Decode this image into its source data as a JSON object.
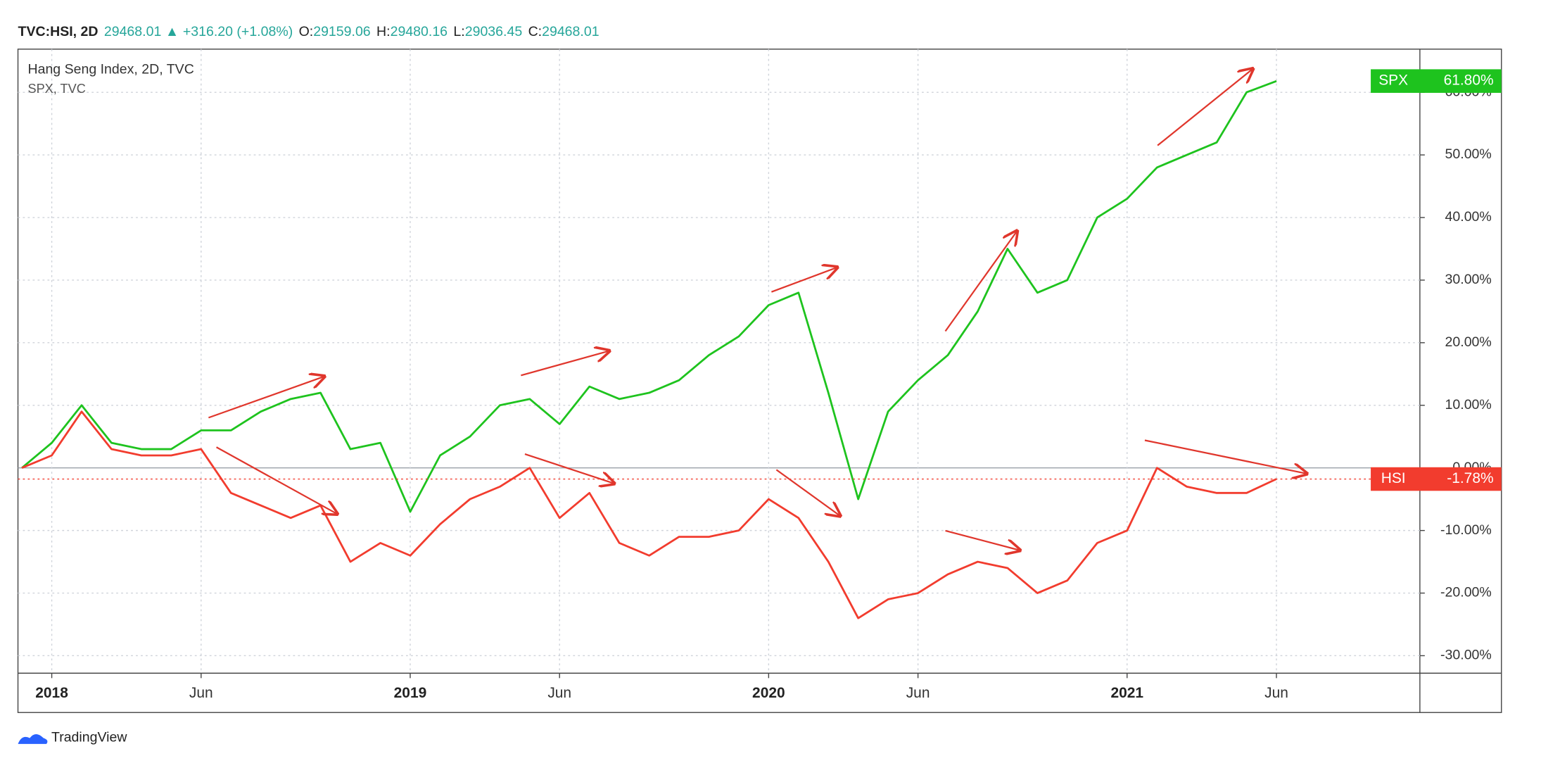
{
  "header": {
    "symbol": "TVC:HSI, 2D",
    "last": "29468.01",
    "change": "+316.20 (+1.08%)",
    "open_label": "O:",
    "open": "29159.06",
    "high_label": "H:",
    "high": "29480.16",
    "low_label": "L:",
    "low": "29036.45",
    "close_label": "C:",
    "close": "29468.01"
  },
  "footer": {
    "brand": "TradingView"
  },
  "chart_data": {
    "type": "line",
    "legend": [
      "Hang Seng Index, 2D, TVC",
      "SPX, TVC"
    ],
    "x": [
      "2017-12",
      "2018-01",
      "2018-02",
      "2018-03",
      "2018-04",
      "2018-05",
      "2018-06",
      "2018-07",
      "2018-08",
      "2018-09",
      "2018-10",
      "2018-11",
      "2018-12",
      "2019-01",
      "2019-02",
      "2019-03",
      "2019-04",
      "2019-05",
      "2019-06",
      "2019-07",
      "2019-08",
      "2019-09",
      "2019-10",
      "2019-11",
      "2019-12",
      "2020-01",
      "2020-02",
      "2020-03",
      "2020-04",
      "2020-05",
      "2020-06",
      "2020-07",
      "2020-08",
      "2020-09",
      "2020-10",
      "2020-11",
      "2020-12",
      "2021-01",
      "2021-02",
      "2021-03",
      "2021-04",
      "2021-05",
      "2021-06"
    ],
    "series": [
      {
        "name": "SPX",
        "color": "#1ec31e",
        "last_label": "61.80%",
        "values": [
          0,
          4,
          10,
          4,
          3,
          3,
          6,
          6,
          9,
          11,
          12,
          3,
          4,
          -7,
          2,
          5,
          10,
          11,
          7,
          13,
          11,
          12,
          14,
          18,
          21,
          26,
          28,
          12,
          -5,
          9,
          14,
          18,
          25,
          35,
          28,
          30,
          40,
          43,
          48,
          50,
          52,
          60,
          61.8
        ]
      },
      {
        "name": "HSI",
        "color": "#f23c2e",
        "last_label": "-1.78%",
        "values": [
          0,
          2,
          9,
          3,
          2,
          2,
          3,
          -4,
          -6,
          -8,
          -6,
          -15,
          -12,
          -14,
          -9,
          -5,
          -3,
          0,
          -8,
          -4,
          -12,
          -14,
          -11,
          -11,
          -10,
          -5,
          -8,
          -15,
          -24,
          -21,
          -20,
          -17,
          -15,
          -16,
          -20,
          -18,
          -12,
          -10,
          0,
          -3,
          -4,
          -4,
          -1.78
        ]
      }
    ],
    "xlim": [
      "2017-12",
      "2021-11"
    ],
    "xticks": [
      {
        "value": "2018-01",
        "label": "2018"
      },
      {
        "value": "2018-06",
        "label": "Jun"
      },
      {
        "value": "2019-01",
        "label": "2019"
      },
      {
        "value": "2019-06",
        "label": "Jun"
      },
      {
        "value": "2020-01",
        "label": "2020"
      },
      {
        "value": "2020-06",
        "label": "Jun"
      },
      {
        "value": "2021-01",
        "label": "2021"
      },
      {
        "value": "2021-06",
        "label": "Jun"
      }
    ],
    "ylim": [
      -32.8,
      66.9
    ],
    "yticks": [
      {
        "value": -30,
        "label": "-30.00%"
      },
      {
        "value": -20,
        "label": "-20.00%"
      },
      {
        "value": -10,
        "label": "-10.00%"
      },
      {
        "value": 0,
        "label": "0.00%"
      },
      {
        "value": 10,
        "label": "10.00%"
      },
      {
        "value": 20,
        "label": "20.00%"
      },
      {
        "value": 30,
        "label": "30.00%"
      },
      {
        "value": 40,
        "label": "40.00%"
      },
      {
        "value": 50,
        "label": "50.00%"
      },
      {
        "value": 60,
        "label": "60.00%"
      }
    ],
    "grid": true
  }
}
